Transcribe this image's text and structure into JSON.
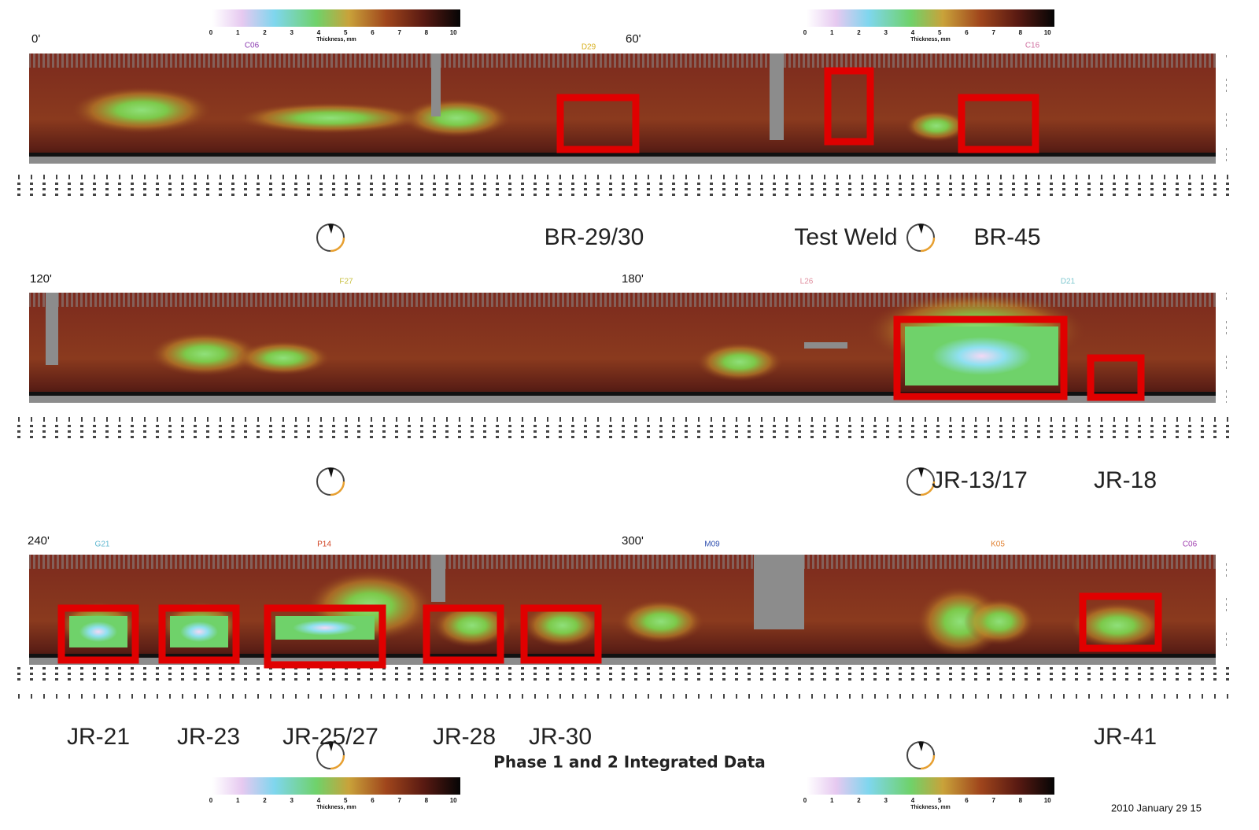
{
  "colorbar": {
    "ticks": [
      "0",
      "1",
      "2",
      "3",
      "4",
      "5",
      "6",
      "7",
      "8",
      "10"
    ],
    "label": "Thickness, mm"
  },
  "strips": [
    {
      "angles": [
        "0'",
        "60'"
      ],
      "codes": [
        "C06",
        "D29",
        "C16"
      ],
      "annotations": [
        "BR-29/30",
        "Test Weld",
        "BR-45"
      ]
    },
    {
      "angles": [
        "120'",
        "180'"
      ],
      "codes": [
        "F27",
        "L26",
        "D21"
      ],
      "annotations": [
        "JR-13/17",
        "JR-18"
      ]
    },
    {
      "angles": [
        "240'",
        "300'"
      ],
      "codes": [
        "G21",
        "P14",
        "M09",
        "K05",
        "C06"
      ],
      "annotations": [
        "JR-21",
        "JR-23",
        "JR-25/27",
        "JR-28",
        "JR-30",
        "JR-41"
      ]
    }
  ],
  "caption": "Phase 1 and 2 Integrated Data",
  "timestamp": "2010 January 29 15"
}
